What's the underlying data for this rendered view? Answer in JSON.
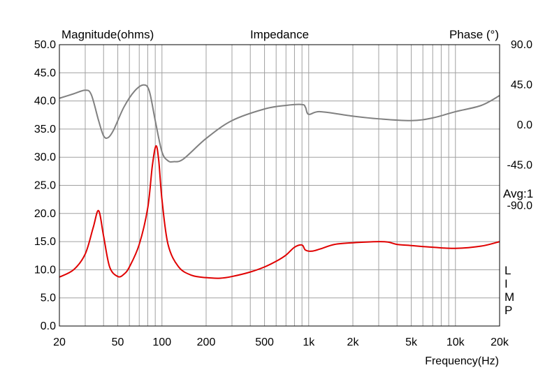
{
  "chart_data": {
    "type": "line",
    "title": "Impedance",
    "xlabel": "Frequency(Hz)",
    "ylabel": "Magnitude(ohms)",
    "y2label": "Phase (°)",
    "avg_label": "Avg:1",
    "side_label": [
      "L",
      "I",
      "M",
      "P"
    ],
    "x_scale": "log",
    "xlim": [
      20,
      20000
    ],
    "ylim": [
      0,
      50
    ],
    "y2lim": [
      -225,
      90
    ],
    "grid": true,
    "x_ticks": [
      {
        "value": 20,
        "label": "20"
      },
      {
        "value": 50,
        "label": "50"
      },
      {
        "value": 100,
        "label": "100"
      },
      {
        "value": 200,
        "label": "200"
      },
      {
        "value": 500,
        "label": "500"
      },
      {
        "value": 1000,
        "label": "1k"
      },
      {
        "value": 2000,
        "label": "2k"
      },
      {
        "value": 5000,
        "label": "5k"
      },
      {
        "value": 10000,
        "label": "10k"
      },
      {
        "value": 20000,
        "label": "20k"
      }
    ],
    "y_ticks": [
      "0.0",
      "5.0",
      "10.0",
      "15.0",
      "20.0",
      "25.0",
      "30.0",
      "35.0",
      "40.0",
      "45.0",
      "50.0"
    ],
    "y2_ticks": [
      "-90.0",
      "-45.0",
      "0.0",
      "45.0",
      "90.0"
    ],
    "y2_tick_values": [
      -90,
      -45,
      0,
      45,
      90
    ],
    "series": [
      {
        "axis": "left",
        "color": "#e00000",
        "x": [
          20,
          25,
          30,
          34,
          37,
          40,
          44,
          50,
          55,
          60,
          70,
          80,
          86,
          91,
          95,
          100,
          110,
          130,
          160,
          200,
          250,
          300,
          400,
          500,
          600,
          700,
          800,
          900,
          950,
          1050,
          1200,
          1500,
          2000,
          3000,
          3500,
          4000,
          5000,
          7000,
          10000,
          15000,
          20000
        ],
        "y": [
          8.7,
          10.0,
          12.8,
          17.5,
          20.5,
          16.0,
          10.5,
          8.8,
          9.2,
          10.5,
          14.5,
          21.0,
          28.5,
          32.0,
          29.5,
          22.5,
          14.5,
          10.5,
          9.0,
          8.6,
          8.5,
          8.8,
          9.6,
          10.5,
          11.5,
          12.6,
          14.0,
          14.4,
          13.5,
          13.3,
          13.7,
          14.5,
          14.8,
          15.0,
          14.9,
          14.5,
          14.3,
          14.0,
          13.8,
          14.2,
          15.0
        ]
      },
      {
        "axis": "right",
        "color": "#808080",
        "x": [
          20,
          25,
          30,
          33,
          37,
          40,
          43,
          47,
          55,
          65,
          75,
          82,
          90,
          100,
          110,
          120,
          140,
          200,
          300,
          500,
          700,
          900,
          950,
          1000,
          1200,
          2000,
          3000,
          5000,
          7000,
          10000,
          15000,
          20000
        ],
        "y": [
          30,
          35,
          39,
          34,
          5,
          -12,
          -14,
          -5,
          20,
          38,
          45,
          38,
          5,
          -30,
          -40,
          -41,
          -38,
          -15,
          5,
          18,
          22,
          23,
          20,
          12,
          15,
          10,
          7,
          5,
          8,
          15,
          22,
          33
        ]
      }
    ]
  }
}
